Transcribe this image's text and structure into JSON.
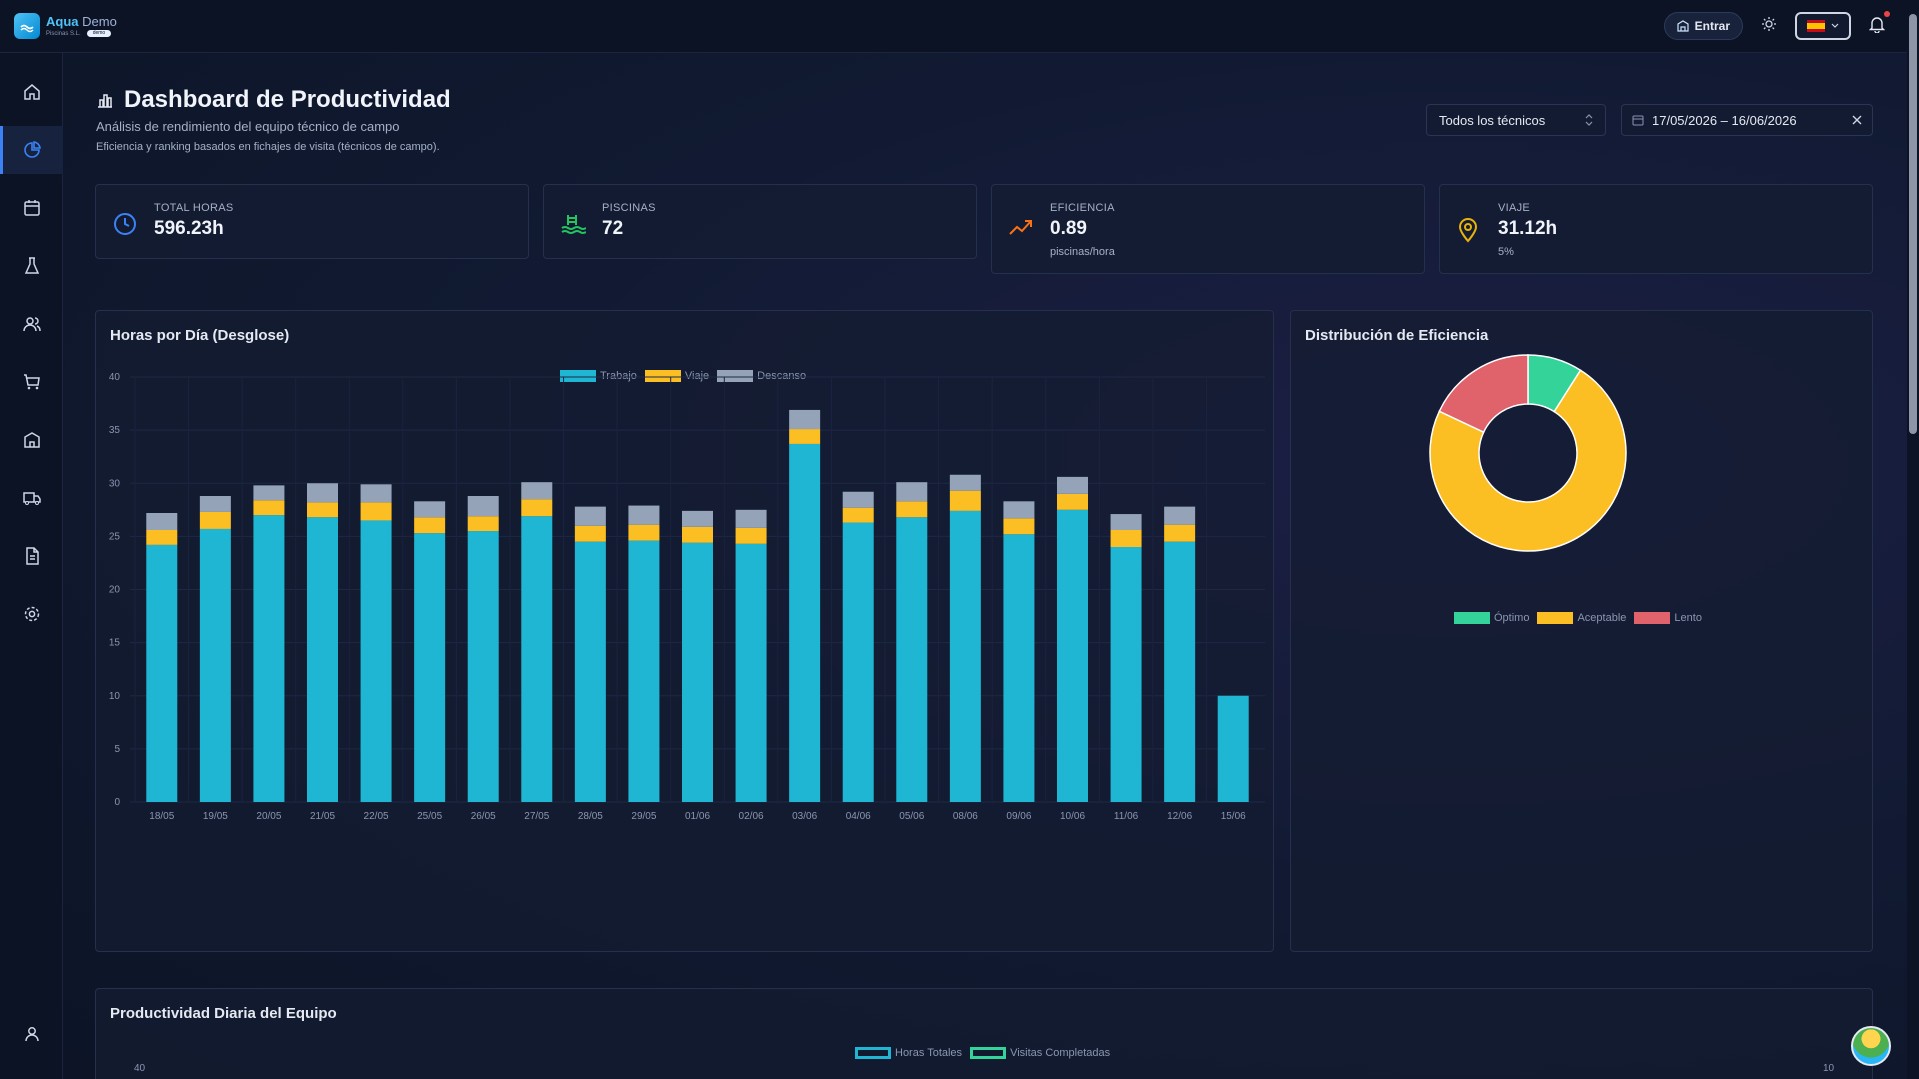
{
  "app": {
    "brand_primary": "Aqua",
    "brand_secondary": "Demo",
    "brand_sub": "Piscinas S.L.",
    "brand_badge": "demo"
  },
  "topbar": {
    "entrar_label": "Entrar",
    "icons": [
      "building-icon",
      "sun-icon",
      "flag-es",
      "bell-icon"
    ]
  },
  "sidebar": {
    "items": [
      "home-icon",
      "chart-pie-icon",
      "calendar-icon",
      "flask-icon",
      "users-icon",
      "cart-icon",
      "building-icon",
      "truck-icon",
      "document-icon",
      "gear-icon"
    ],
    "active_index": 1,
    "bottom": "user-icon"
  },
  "header": {
    "title": "Dashboard de Productividad",
    "subtitle": "Análisis de rendimiento del equipo técnico de campo",
    "note": "Eficiencia y ranking basados en fichajes de visita (técnicos de campo)."
  },
  "filters": {
    "technician_value": "Todos los técnicos",
    "date_range": "17/05/2026 – 16/06/2026"
  },
  "stats": [
    {
      "label": "TOTAL HORAS",
      "value": "596.23h",
      "sub": "",
      "color": "#3b82f6"
    },
    {
      "label": "PISCINAS",
      "value": "72",
      "sub": "",
      "color": "#22c55e"
    },
    {
      "label": "EFICIENCIA",
      "value": "0.89",
      "sub": "piscinas/hora",
      "color": "#f97316"
    },
    {
      "label": "VIAJE",
      "value": "31.12h",
      "sub": "5%",
      "color": "#eab308"
    }
  ],
  "panels": {
    "hours_title": "Horas por Día (Desglose)",
    "efficiency_title": "Distribución de Eficiencia",
    "team_title": "Productividad Diaria del Equipo"
  },
  "chart_data": [
    {
      "type": "bar",
      "stacked": true,
      "title": "Horas por Día (Desglose)",
      "categories": [
        "18/05",
        "19/05",
        "20/05",
        "21/05",
        "22/05",
        "25/05",
        "26/05",
        "27/05",
        "28/05",
        "29/05",
        "01/06",
        "02/06",
        "03/06",
        "04/06",
        "05/06",
        "08/06",
        "09/06",
        "10/06",
        "11/06",
        "12/06",
        "15/06"
      ],
      "series": [
        {
          "name": "Trabajo",
          "color": "#1fb6d4",
          "values": [
            24.2,
            25.7,
            27.0,
            26.8,
            26.5,
            25.3,
            25.5,
            26.9,
            24.5,
            24.6,
            24.4,
            24.3,
            33.7,
            26.3,
            26.8,
            27.4,
            25.2,
            27.5,
            24.0,
            24.5,
            10.0
          ]
        },
        {
          "name": "Viaje",
          "color": "#fbbf24",
          "values": [
            1.4,
            1.6,
            1.4,
            1.4,
            1.7,
            1.5,
            1.4,
            1.6,
            1.5,
            1.5,
            1.5,
            1.5,
            1.4,
            1.4,
            1.5,
            1.9,
            1.5,
            1.5,
            1.6,
            1.6,
            0
          ]
        },
        {
          "name": "Descanso",
          "color": "#94a3b8",
          "values": [
            1.6,
            1.5,
            1.4,
            1.8,
            1.7,
            1.5,
            1.9,
            1.6,
            1.8,
            1.8,
            1.5,
            1.7,
            1.8,
            1.5,
            1.8,
            1.5,
            1.6,
            1.6,
            1.5,
            1.7,
            0
          ]
        }
      ],
      "ylim": [
        0,
        40
      ],
      "yticks": [
        0,
        5,
        10,
        15,
        20,
        25,
        30,
        35,
        40
      ],
      "legend": "top-center"
    },
    {
      "type": "pie",
      "donut": true,
      "title": "Distribución de Eficiencia",
      "categories": [
        "Óptimo",
        "Aceptable",
        "Lento"
      ],
      "values": [
        9,
        73,
        18
      ],
      "colors": [
        "#34d399",
        "#fbbf24",
        "#e0626b"
      ],
      "legend": "bottom-center"
    },
    {
      "type": "line",
      "title": "Productividad Diaria del Equipo",
      "series": [
        {
          "name": "Horas Totales",
          "color": "#1fb6d4"
        },
        {
          "name": "Visitas Completadas",
          "color": "#34d399"
        }
      ],
      "left_axis_top": 40,
      "right_axis_top": 10,
      "legend": "top-center"
    }
  ]
}
